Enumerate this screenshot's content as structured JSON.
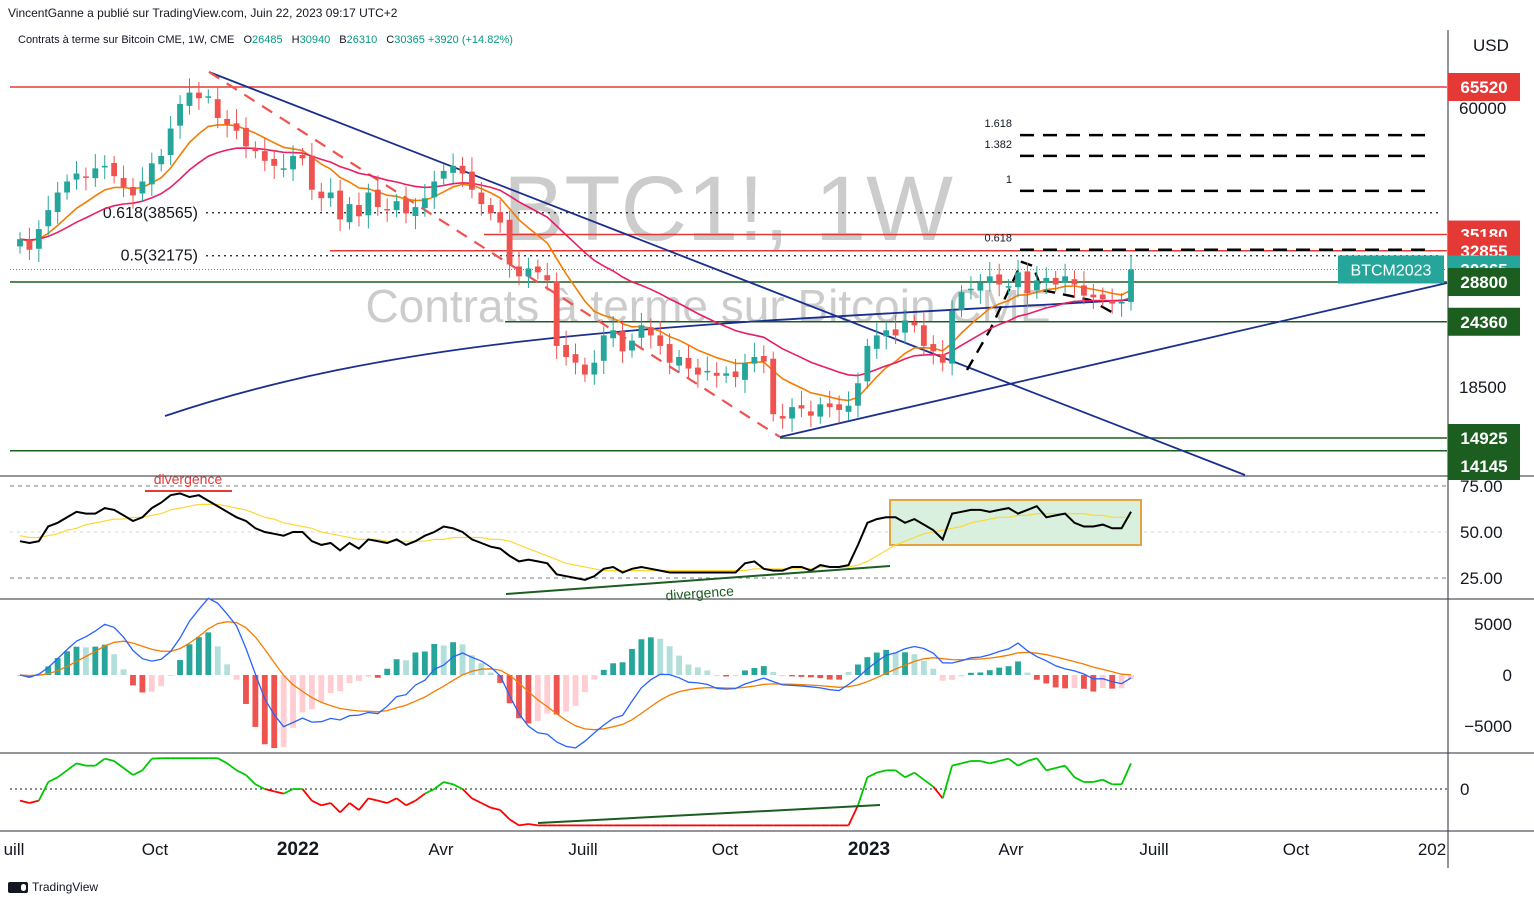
{
  "header": {
    "publisher": "VincentGanne a publié sur TradingView.com, Juin 22, 2023 09:17 UTC+2"
  },
  "legend": {
    "symbol": "Contrats à terme sur Bitcoin CME, 1W, CME",
    "open_label": "O",
    "open": "26485",
    "high_label": "H",
    "high": "30940",
    "low_label": "B",
    "low": "26310",
    "close_label": "C",
    "close": "30365",
    "change": "+3920 (+14.82%)"
  },
  "watermark": {
    "ticker": "BTC1!, 1W",
    "name": "Contrats à terme sur Bitcoin CME"
  },
  "currency": "USD",
  "footer": {
    "brand": "TradingView"
  },
  "colors": {
    "up": "#26a69a",
    "down": "#ef5350",
    "support": "#1b5e20",
    "resistance": "#e53935",
    "trend": "#1a2f8f",
    "ema_fast": "#f57c00",
    "ema_slow": "#e91e63",
    "rsi": "#000000",
    "rsi_ma": "#fdd835",
    "macd": "#2962ff",
    "signal": "#f57c00"
  },
  "chart_data": [
    {
      "type": "candlestick",
      "title": "Contrats à terme sur Bitcoin CME, 1W, CME",
      "x_tick_labels": [
        "uill",
        "Oct",
        "2022",
        "Avr",
        "Juill",
        "Oct",
        "2023",
        "Avr",
        "Juill",
        "Oct",
        "202"
      ],
      "y_tick_labels": [
        "60000",
        "18500"
      ],
      "ylim_approx": [
        13500,
        68000
      ],
      "y_scale": "log",
      "price_tags": [
        {
          "value": "65520",
          "kind": "resistance"
        },
        {
          "value": "35180",
          "kind": "resistance"
        },
        {
          "value": "32855",
          "kind": "resistance"
        },
        {
          "value": "30365",
          "kind": "last"
        },
        {
          "value": "28800",
          "kind": "support"
        },
        {
          "value": "24360",
          "kind": "support"
        },
        {
          "value": "14925",
          "kind": "support"
        },
        {
          "value": "14145",
          "kind": "support"
        }
      ],
      "series_tag": "BTCM2023",
      "fib_levels": [
        {
          "label": "0.618(38565)",
          "value": 38565
        },
        {
          "label": "0.5(32175)",
          "value": 32175
        }
      ],
      "projection_levels": [
        {
          "label": "1.618",
          "value": 53500
        },
        {
          "label": "1.382",
          "value": 49000
        },
        {
          "label": "1",
          "value": 42300
        },
        {
          "label": "0.618",
          "value": 33000
        }
      ],
      "closes_approx": [
        34500,
        33000,
        36000,
        39000,
        42000,
        44000,
        45500,
        44800,
        46500,
        47000,
        45000,
        43000,
        41500,
        44000,
        47500,
        49000,
        55000,
        61000,
        64000,
        62500,
        63000,
        57500,
        56000,
        54500,
        51000,
        50000,
        48000,
        47000,
        46500,
        49000,
        48500,
        42500,
        41000,
        42000,
        37500,
        40000,
        38000,
        42000,
        39500,
        39000,
        40500,
        38500,
        39500,
        41000,
        44000,
        46000,
        47000,
        45500,
        42500,
        40000,
        38500,
        37000,
        31000,
        29500,
        30500,
        30000,
        29000,
        22000,
        21000,
        20500,
        19500,
        20500,
        23000,
        23500,
        21500,
        22500,
        24000,
        23000,
        22000,
        20500,
        21000,
        20000,
        19500,
        19800,
        19400,
        19600,
        19300,
        20500,
        21000,
        20600,
        16500,
        16200,
        17000,
        16900,
        16400,
        17200,
        17000,
        16800,
        17100,
        18800,
        22000,
        23000,
        23500,
        23000,
        24500,
        24000,
        22000,
        21500,
        20500,
        25500,
        27600,
        28000,
        28700,
        29500,
        28500,
        28300,
        30000,
        27500,
        29000,
        29300,
        28500,
        29500,
        28500,
        27200,
        27000,
        26800,
        26300,
        26485,
        30365
      ],
      "rsi_panel": {
        "y_tick_labels": [
          "75.00",
          "50.00",
          "25.00"
        ],
        "annotations": [
          "divergence",
          "divergence"
        ],
        "values_approx": [
          45,
          44,
          45,
          53,
          55,
          58,
          61,
          60,
          60,
          63,
          62,
          59,
          56,
          58,
          63,
          66,
          70,
          71,
          69,
          70,
          67,
          64,
          61,
          58,
          56,
          52,
          50,
          49,
          48,
          50,
          50,
          45,
          43,
          44,
          40,
          44,
          41,
          46,
          45,
          44,
          46,
          43,
          45,
          48,
          50,
          53,
          52,
          50,
          46,
          44,
          42,
          41,
          37,
          34,
          35,
          34,
          33,
          27,
          26,
          25,
          24,
          26,
          30,
          31,
          28,
          30,
          31,
          30,
          29,
          28,
          28,
          28,
          28,
          28,
          28,
          28,
          28,
          33,
          34,
          30,
          29,
          29,
          31,
          31,
          29,
          32,
          31,
          31,
          32,
          43,
          55,
          57,
          58,
          58,
          55,
          57,
          54,
          51,
          46,
          60,
          61,
          62,
          62,
          61,
          62,
          63,
          60,
          62,
          64,
          58,
          59,
          60,
          55,
          53,
          53,
          54,
          52,
          52,
          61
        ],
        "ma_values_approx": [
          48,
          47,
          47,
          48,
          49,
          51,
          52,
          54,
          55,
          56,
          57,
          57,
          58,
          58,
          59,
          60,
          62,
          63,
          64,
          65,
          65,
          65,
          64,
          63,
          62,
          60,
          58,
          57,
          55,
          54,
          53,
          52,
          50,
          49,
          48,
          47,
          46,
          46,
          46,
          45,
          45,
          45,
          45,
          45,
          46,
          46,
          47,
          47,
          47,
          47,
          46,
          46,
          45,
          43,
          41,
          39,
          37,
          35,
          33,
          32,
          31,
          30,
          29,
          29,
          29,
          29,
          29,
          29,
          29,
          29,
          29,
          29,
          29,
          29,
          29,
          29,
          29,
          29,
          30,
          30,
          30,
          30,
          30,
          30,
          30,
          31,
          31,
          31,
          31,
          32,
          34,
          37,
          40,
          43,
          45,
          47,
          49,
          50,
          51,
          52,
          53,
          55,
          56,
          57,
          58,
          58,
          59,
          59,
          60,
          60,
          60,
          60,
          60,
          60,
          59,
          59,
          58,
          58,
          58
        ]
      },
      "macd_panel": {
        "y_tick_labels": [
          "5000",
          "0",
          "−5000"
        ]
      },
      "osc_panel": {
        "y_tick_labels": [
          "0"
        ]
      }
    }
  ]
}
